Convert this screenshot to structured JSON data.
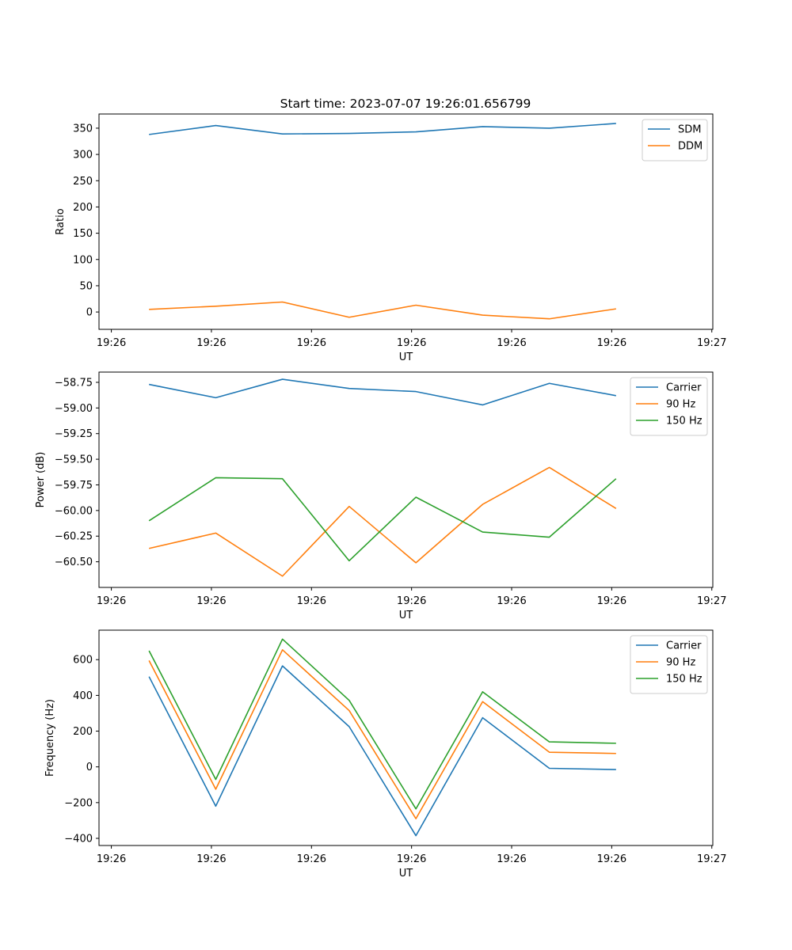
{
  "title": "Start time: 2023-07-07 19:26:01.656799",
  "colors": {
    "blue": "#1f77b4",
    "orange": "#ff7f0e",
    "green": "#2ca02c",
    "axes": "#000000",
    "legend_border": "#cccccc"
  },
  "chart_data": [
    {
      "type": "line",
      "title": "Start time: 2023-07-07 19:26:01.656799",
      "xlabel": "UT",
      "ylabel": "Ratio",
      "x": [
        0,
        1,
        2,
        3,
        4,
        5,
        6,
        7
      ],
      "xlim": [
        -0.75,
        8.45
      ],
      "x_ticks": [
        -0.565,
        0.935,
        2.435,
        3.935,
        5.435,
        6.935,
        8.435
      ],
      "x_tick_labels": [
        "19:26",
        "19:26",
        "19:26",
        "19:26",
        "19:26",
        "19:26",
        "19:27"
      ],
      "ylim": [
        -33,
        377
      ],
      "y_ticks": [
        0,
        50,
        100,
        150,
        200,
        250,
        300,
        350
      ],
      "y_tick_labels": [
        "0",
        "50",
        "100",
        "150",
        "200",
        "250",
        "300",
        "350"
      ],
      "legend_position": "top-right",
      "series": [
        {
          "name": "SDM",
          "color": "blue",
          "values": [
            338,
            355,
            339,
            340,
            343,
            353,
            350,
            359
          ]
        },
        {
          "name": "DDM",
          "color": "orange",
          "values": [
            5,
            11,
            19,
            -10,
            13,
            -6,
            -13,
            6
          ]
        }
      ]
    },
    {
      "type": "line",
      "title": "",
      "xlabel": "UT",
      "ylabel": "Power (dB)",
      "x": [
        0,
        1,
        2,
        3,
        4,
        5,
        6,
        7
      ],
      "xlim": [
        -0.75,
        8.45
      ],
      "x_ticks": [
        -0.565,
        0.935,
        2.435,
        3.935,
        5.435,
        6.935,
        8.435
      ],
      "x_tick_labels": [
        "19:26",
        "19:26",
        "19:26",
        "19:26",
        "19:26",
        "19:26",
        "19:27"
      ],
      "ylim": [
        -60.75,
        -58.65
      ],
      "y_ticks": [
        -58.75,
        -59.0,
        -59.25,
        -59.5,
        -59.75,
        -60.0,
        -60.25,
        -60.5
      ],
      "y_tick_labels": [
        "−58.75",
        "−59.00",
        "−59.25",
        "−59.50",
        "−59.75",
        "−60.00",
        "−60.25",
        "−60.50"
      ],
      "legend_position": "top-right",
      "series": [
        {
          "name": "Carrier",
          "color": "blue",
          "values": [
            -58.77,
            -58.9,
            -58.72,
            -58.81,
            -58.84,
            -58.97,
            -58.76,
            -58.88
          ]
        },
        {
          "name": "90 Hz",
          "color": "orange",
          "values": [
            -60.37,
            -60.22,
            -60.64,
            -59.96,
            -60.51,
            -59.94,
            -59.58,
            -59.98
          ]
        },
        {
          "name": "150 Hz",
          "color": "green",
          "values": [
            -60.1,
            -59.68,
            -59.69,
            -60.49,
            -59.87,
            -60.21,
            -60.26,
            -59.69
          ]
        }
      ]
    },
    {
      "type": "line",
      "title": "",
      "xlabel": "UT",
      "ylabel": "Frequency (Hz)",
      "x": [
        0,
        1,
        2,
        3,
        4,
        5,
        6,
        7
      ],
      "xlim": [
        -0.75,
        8.45
      ],
      "x_ticks": [
        -0.565,
        0.935,
        2.435,
        3.935,
        5.435,
        6.935,
        8.435
      ],
      "x_tick_labels": [
        "19:26",
        "19:26",
        "19:26",
        "19:26",
        "19:26",
        "19:26",
        "19:27"
      ],
      "ylim": [
        -440,
        765
      ],
      "y_ticks": [
        -400,
        -200,
        0,
        200,
        400,
        600
      ],
      "y_tick_labels": [
        "−400",
        "−200",
        "0",
        "200",
        "400",
        "600"
      ],
      "legend_position": "top-right",
      "series": [
        {
          "name": "Carrier",
          "color": "blue",
          "values": [
            505,
            -220,
            565,
            225,
            -385,
            275,
            -8,
            -15
          ]
        },
        {
          "name": "90 Hz",
          "color": "orange",
          "values": [
            595,
            -125,
            655,
            315,
            -290,
            365,
            82,
            75
          ]
        },
        {
          "name": "150 Hz",
          "color": "green",
          "values": [
            650,
            -70,
            715,
            372,
            -235,
            420,
            140,
            132
          ]
        }
      ]
    }
  ]
}
